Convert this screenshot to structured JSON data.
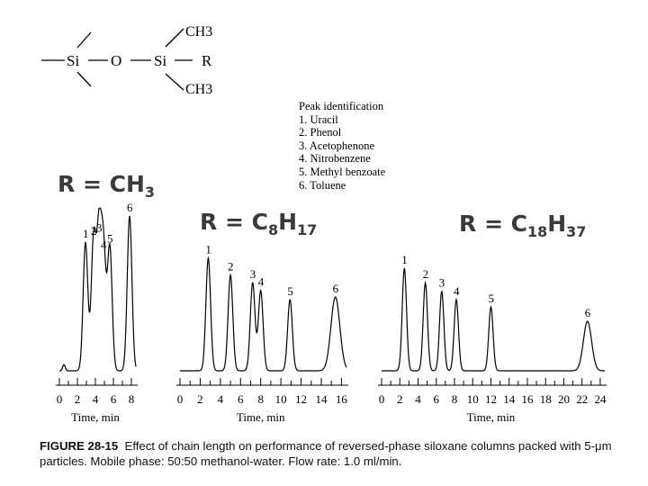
{
  "structure": {
    "atoms": [
      "Si",
      "O",
      "Si",
      "CH3",
      "R",
      "CH3"
    ]
  },
  "peak_identification": {
    "title": "Peak identification",
    "items": [
      "1. Uracil",
      "2. Phenol",
      "3. Acetophenone",
      "4. Nitrobenzene",
      "5. Methyl benzoate",
      "6. Toluene"
    ]
  },
  "caption": {
    "figure": "FIGURE 28-15",
    "text": "Effect of chain length on performance of reversed-phase siloxane columns packed with 5-μm particles. Mobile phase: 50:50 methanol-water. Flow rate: 1.0 ml/min."
  },
  "chart_data": [
    {
      "type": "line",
      "label": {
        "prefix": "R = CH",
        "sub": "3"
      },
      "xlabel": "Time, min",
      "xlim": [
        0,
        8.5
      ],
      "ticks": [
        0,
        2,
        4,
        6,
        8
      ],
      "peaks": [
        {
          "id": "1",
          "t": 2.9,
          "h": 0.83
        },
        {
          "id": "2",
          "t": 3.8,
          "h": 0.85
        },
        {
          "id": "3",
          "t": 4.4,
          "h": 0.87
        },
        {
          "id": "4",
          "t": 4.9,
          "h": 0.76
        },
        {
          "id": "5",
          "t": 5.6,
          "h": 0.8
        },
        {
          "id": "6",
          "t": 7.8,
          "h": 1.0
        }
      ]
    },
    {
      "type": "line",
      "label": {
        "prefix": "R = C",
        "sub": "8",
        "mid": "H",
        "sub2": "17"
      },
      "xlabel": "Time, min",
      "xlim": [
        0,
        16.5
      ],
      "ticks": [
        0,
        2,
        4,
        6,
        8,
        10,
        12,
        14,
        16
      ],
      "peaks": [
        {
          "id": "1",
          "t": 2.8,
          "h": 0.87
        },
        {
          "id": "2",
          "t": 5.0,
          "h": 0.74
        },
        {
          "id": "3",
          "t": 7.2,
          "h": 0.68
        },
        {
          "id": "4",
          "t": 8.0,
          "h": 0.62
        },
        {
          "id": "5",
          "t": 10.9,
          "h": 0.55
        },
        {
          "id": "6",
          "t": 15.4,
          "h": 0.57
        }
      ]
    },
    {
      "type": "line",
      "label": {
        "prefix": "R = C",
        "sub": "18",
        "mid": "H",
        "sub2": "37"
      },
      "xlabel": "Time, min",
      "xlim": [
        0,
        24.5
      ],
      "ticks": [
        0,
        2,
        4,
        6,
        8,
        10,
        12,
        14,
        16,
        18,
        20,
        22,
        24
      ],
      "peaks": [
        {
          "id": "1",
          "t": 2.5,
          "h": 0.85
        },
        {
          "id": "2",
          "t": 4.8,
          "h": 0.73
        },
        {
          "id": "3",
          "t": 6.6,
          "h": 0.66
        },
        {
          "id": "4",
          "t": 8.2,
          "h": 0.59
        },
        {
          "id": "5",
          "t": 12.0,
          "h": 0.53
        },
        {
          "id": "6",
          "t": 22.6,
          "h": 0.41
        }
      ]
    }
  ]
}
